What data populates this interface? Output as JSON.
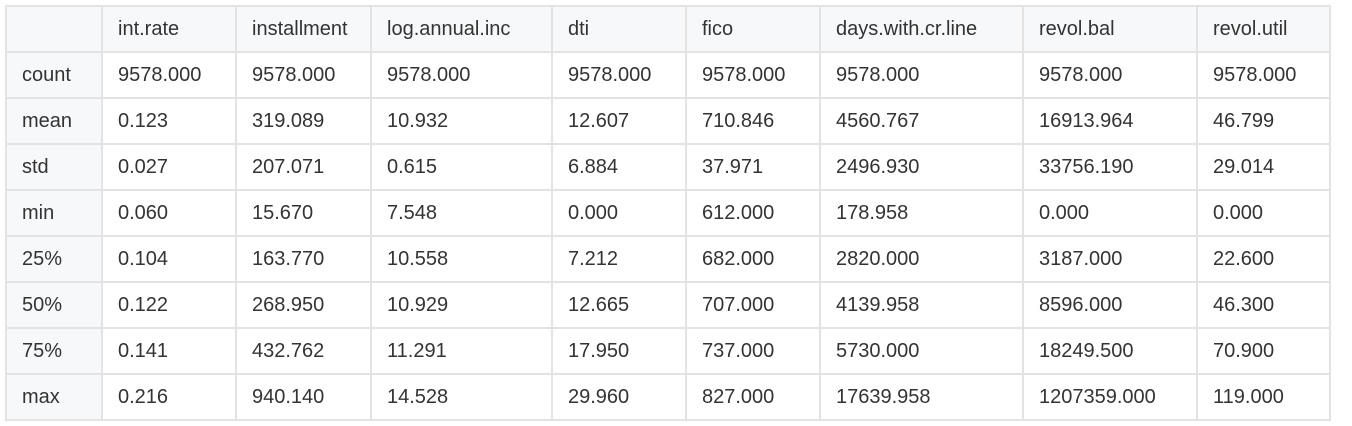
{
  "table": {
    "columns": [
      "int.rate",
      "installment",
      "log.annual.inc",
      "dti",
      "fico",
      "days.with.cr.line",
      "revol.bal",
      "revol.util"
    ],
    "rows": [
      {
        "label": "count",
        "values": [
          "9578.000",
          "9578.000",
          "9578.000",
          "9578.000",
          "9578.000",
          "9578.000",
          "9578.000",
          "9578.000"
        ]
      },
      {
        "label": "mean",
        "values": [
          "0.123",
          "319.089",
          "10.932",
          "12.607",
          "710.846",
          "4560.767",
          "16913.964",
          "46.799"
        ]
      },
      {
        "label": "std",
        "values": [
          "0.027",
          "207.071",
          "0.615",
          "6.884",
          "37.971",
          "2496.930",
          "33756.190",
          "29.014"
        ]
      },
      {
        "label": "min",
        "values": [
          "0.060",
          "15.670",
          "7.548",
          "0.000",
          "612.000",
          "178.958",
          "0.000",
          "0.000"
        ]
      },
      {
        "label": "25%",
        "values": [
          "0.104",
          "163.770",
          "10.558",
          "7.212",
          "682.000",
          "2820.000",
          "3187.000",
          "22.600"
        ]
      },
      {
        "label": "50%",
        "values": [
          "0.122",
          "268.950",
          "10.929",
          "12.665",
          "707.000",
          "4139.958",
          "8596.000",
          "46.300"
        ]
      },
      {
        "label": "75%",
        "values": [
          "0.141",
          "432.762",
          "11.291",
          "17.950",
          "737.000",
          "5730.000",
          "18249.500",
          "70.900"
        ]
      },
      {
        "label": "max",
        "values": [
          "0.216",
          "940.140",
          "14.528",
          "29.960",
          "827.000",
          "17639.958",
          "1207359.000",
          "119.000"
        ]
      }
    ]
  }
}
